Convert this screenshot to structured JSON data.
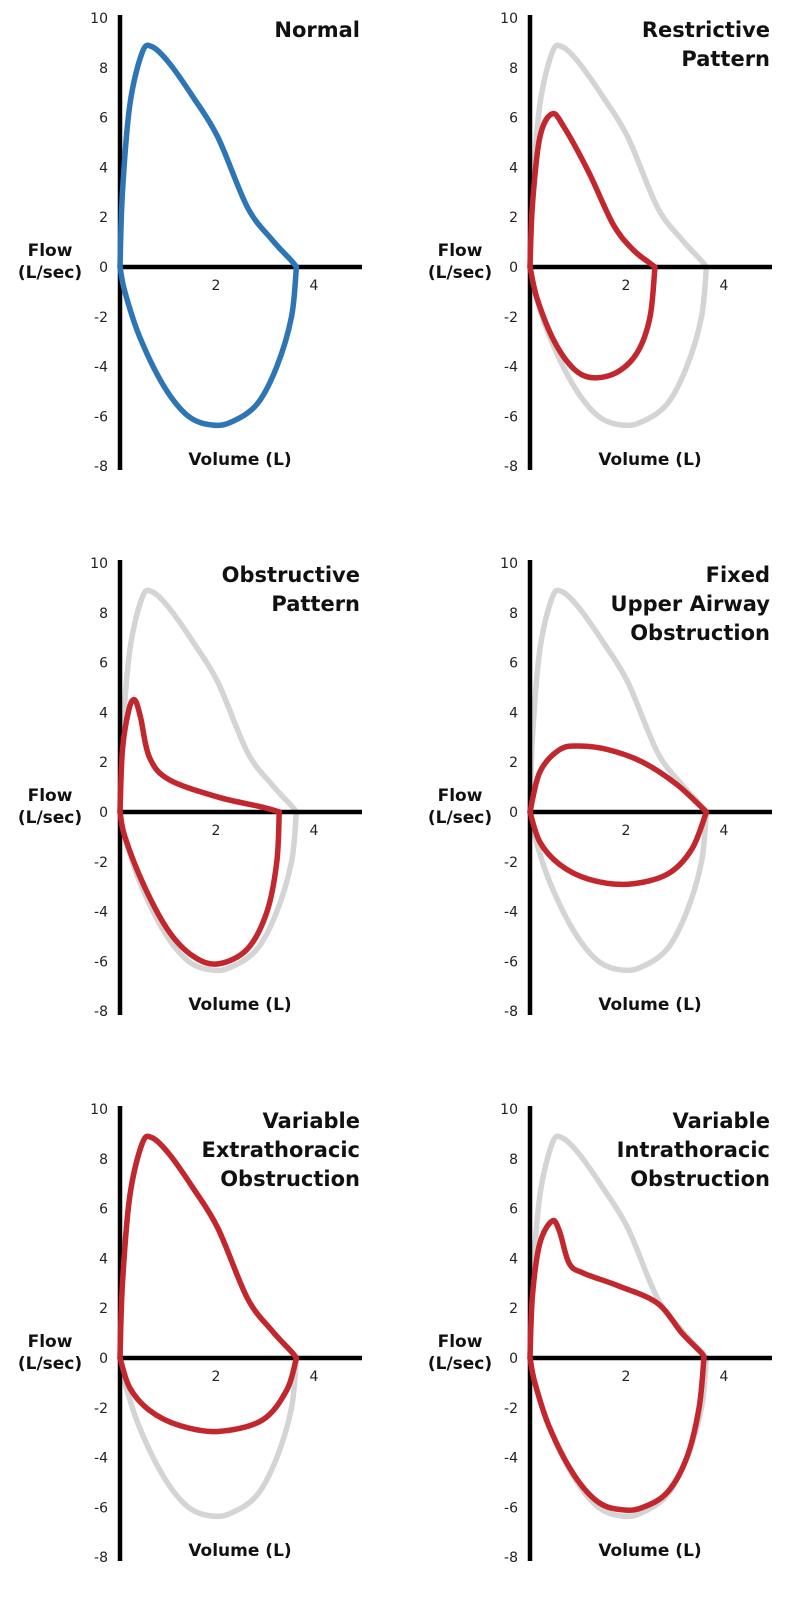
{
  "colors": {
    "normal": "#2e75b6",
    "pattern": "#c1272d",
    "reference": "#d4d4d4",
    "axis": "#000000"
  },
  "chart_data": [
    {
      "type": "line",
      "title": "Normal",
      "xlabel": "Volume (L)",
      "ylabel": "Flow\n(L/sec)",
      "xlim": [
        0,
        4.9
      ],
      "ylim": [
        -8,
        10
      ],
      "yticks": [
        "10",
        "8",
        "6",
        "4",
        "2",
        "0",
        "-2",
        "-4",
        "-6",
        "-8"
      ],
      "xticks": [
        "2",
        "4"
      ],
      "reference": false,
      "color_key": "normal",
      "expiration": [
        [
          0,
          0
        ],
        [
          0.05,
          3
        ],
        [
          0.2,
          6.5
        ],
        [
          0.45,
          8.6
        ],
        [
          0.65,
          8.85
        ],
        [
          1,
          8.2
        ],
        [
          1.5,
          6.8
        ],
        [
          2,
          5.2
        ],
        [
          2.6,
          2.4
        ],
        [
          3.1,
          1.1
        ],
        [
          3.5,
          0.25
        ],
        [
          3.6,
          0
        ]
      ],
      "inspiration": [
        [
          3.6,
          0
        ],
        [
          3.5,
          -2
        ],
        [
          3.2,
          -4
        ],
        [
          2.8,
          -5.5
        ],
        [
          2.3,
          -6.2
        ],
        [
          1.9,
          -6.35
        ],
        [
          1.4,
          -6
        ],
        [
          0.9,
          -4.8
        ],
        [
          0.4,
          -2.8
        ],
        [
          0.1,
          -1
        ],
        [
          0,
          0
        ]
      ]
    },
    {
      "type": "line",
      "title": "Restrictive\nPattern",
      "xlabel": "Volume (L)",
      "ylabel": "Flow\n(L/sec)",
      "xlim": [
        0,
        4.9
      ],
      "ylim": [
        -8,
        10
      ],
      "yticks": [
        "10",
        "8",
        "6",
        "4",
        "2",
        "0",
        "-2",
        "-4",
        "-6",
        "-8"
      ],
      "xticks": [
        "2",
        "4"
      ],
      "reference": true,
      "color_key": "pattern",
      "expiration": [
        [
          0,
          0
        ],
        [
          0.05,
          2.5
        ],
        [
          0.2,
          5.2
        ],
        [
          0.45,
          6.15
        ],
        [
          0.7,
          5.6
        ],
        [
          1.2,
          3.8
        ],
        [
          1.7,
          1.7
        ],
        [
          2.1,
          0.7
        ],
        [
          2.45,
          0.15
        ],
        [
          2.55,
          0
        ]
      ],
      "inspiration": [
        [
          2.55,
          0
        ],
        [
          2.45,
          -2
        ],
        [
          2.2,
          -3.4
        ],
        [
          1.8,
          -4.2
        ],
        [
          1.3,
          -4.45
        ],
        [
          0.9,
          -4.1
        ],
        [
          0.5,
          -3
        ],
        [
          0.15,
          -1.3
        ],
        [
          0,
          0
        ]
      ]
    },
    {
      "type": "line",
      "title": "Obstructive\nPattern",
      "xlabel": "Volume (L)",
      "ylabel": "Flow\n(L/sec)",
      "xlim": [
        0,
        4.9
      ],
      "ylim": [
        -8,
        10
      ],
      "yticks": [
        "10",
        "8",
        "6",
        "4",
        "2",
        "0",
        "-2",
        "-4",
        "-6",
        "-8"
      ],
      "xticks": [
        "2",
        "4"
      ],
      "reference": true,
      "color_key": "pattern",
      "expiration": [
        [
          0,
          0
        ],
        [
          0.05,
          2.5
        ],
        [
          0.18,
          4.1
        ],
        [
          0.3,
          4.5
        ],
        [
          0.42,
          3.8
        ],
        [
          0.6,
          2.2
        ],
        [
          1,
          1.3
        ],
        [
          2,
          0.6
        ],
        [
          2.9,
          0.2
        ],
        [
          3.25,
          0
        ]
      ],
      "inspiration": [
        [
          3.25,
          0
        ],
        [
          3.2,
          -2
        ],
        [
          3,
          -4
        ],
        [
          2.6,
          -5.5
        ],
        [
          2,
          -6.1
        ],
        [
          1.5,
          -5.8
        ],
        [
          1,
          -4.8
        ],
        [
          0.5,
          -3
        ],
        [
          0.1,
          -1
        ],
        [
          0,
          0
        ]
      ]
    },
    {
      "type": "line",
      "title": "Fixed\nUpper Airway\nObstruction",
      "xlabel": "Volume (L)",
      "ylabel": "Flow\n(L/sec)",
      "xlim": [
        0,
        4.9
      ],
      "ylim": [
        -8,
        10
      ],
      "yticks": [
        "10",
        "8",
        "6",
        "4",
        "2",
        "0",
        "-2",
        "-4",
        "-6",
        "-8"
      ],
      "xticks": [
        "2",
        "4"
      ],
      "reference": true,
      "color_key": "pattern",
      "expiration": [
        [
          0,
          0
        ],
        [
          0.2,
          1.6
        ],
        [
          0.6,
          2.5
        ],
        [
          1,
          2.65
        ],
        [
          1.6,
          2.5
        ],
        [
          2.3,
          2
        ],
        [
          3,
          1.1
        ],
        [
          3.6,
          0
        ]
      ],
      "inspiration": [
        [
          3.6,
          0
        ],
        [
          3.3,
          -1.5
        ],
        [
          2.8,
          -2.5
        ],
        [
          2,
          -2.9
        ],
        [
          1.2,
          -2.7
        ],
        [
          0.6,
          -2.1
        ],
        [
          0.2,
          -1.2
        ],
        [
          0,
          0
        ]
      ]
    },
    {
      "type": "line",
      "title": "Variable\nExtrathoracic\nObstruction",
      "xlabel": "Volume (L)",
      "ylabel": "Flow\n(L/sec)",
      "xlim": [
        0,
        4.9
      ],
      "ylim": [
        -8,
        10
      ],
      "yticks": [
        "10",
        "8",
        "6",
        "4",
        "2",
        "0",
        "-2",
        "-4",
        "-6",
        "-8"
      ],
      "xticks": [
        "2",
        "4"
      ],
      "reference": true,
      "color_key": "pattern",
      "expiration": [
        [
          0,
          0
        ],
        [
          0.05,
          3
        ],
        [
          0.2,
          6.5
        ],
        [
          0.45,
          8.6
        ],
        [
          0.65,
          8.85
        ],
        [
          1,
          8.2
        ],
        [
          1.5,
          6.8
        ],
        [
          2,
          5.2
        ],
        [
          2.6,
          2.4
        ],
        [
          3.1,
          1.1
        ],
        [
          3.5,
          0.25
        ],
        [
          3.6,
          0
        ]
      ],
      "inspiration": [
        [
          3.6,
          0
        ],
        [
          3.4,
          -1.3
        ],
        [
          2.9,
          -2.5
        ],
        [
          2,
          -2.95
        ],
        [
          1.2,
          -2.7
        ],
        [
          0.6,
          -2.1
        ],
        [
          0.2,
          -1.2
        ],
        [
          0,
          0
        ]
      ]
    },
    {
      "type": "line",
      "title": "Variable\nIntrathoracic\nObstruction",
      "xlabel": "Volume (L)",
      "ylabel": "Flow\n(L/sec)",
      "xlim": [
        0,
        4.9
      ],
      "ylim": [
        -8,
        10
      ],
      "yticks": [
        "10",
        "8",
        "6",
        "4",
        "2",
        "0",
        "-2",
        "-4",
        "-6",
        "-8"
      ],
      "xticks": [
        "2",
        "4"
      ],
      "reference": true,
      "color_key": "pattern",
      "expiration": [
        [
          0,
          0
        ],
        [
          0.05,
          2.5
        ],
        [
          0.2,
          4.6
        ],
        [
          0.45,
          5.5
        ],
        [
          0.6,
          5.1
        ],
        [
          0.8,
          3.8
        ],
        [
          1.1,
          3.4
        ],
        [
          1.8,
          2.9
        ],
        [
          2.6,
          2.2
        ],
        [
          3.1,
          1
        ],
        [
          3.5,
          0.2
        ],
        [
          3.55,
          0
        ]
      ],
      "inspiration": [
        [
          3.55,
          0
        ],
        [
          3.45,
          -2
        ],
        [
          3.2,
          -4
        ],
        [
          2.8,
          -5.4
        ],
        [
          2.3,
          -6
        ],
        [
          1.9,
          -6.1
        ],
        [
          1.4,
          -5.8
        ],
        [
          0.9,
          -4.7
        ],
        [
          0.4,
          -2.8
        ],
        [
          0.1,
          -1
        ],
        [
          0,
          0
        ]
      ]
    }
  ]
}
